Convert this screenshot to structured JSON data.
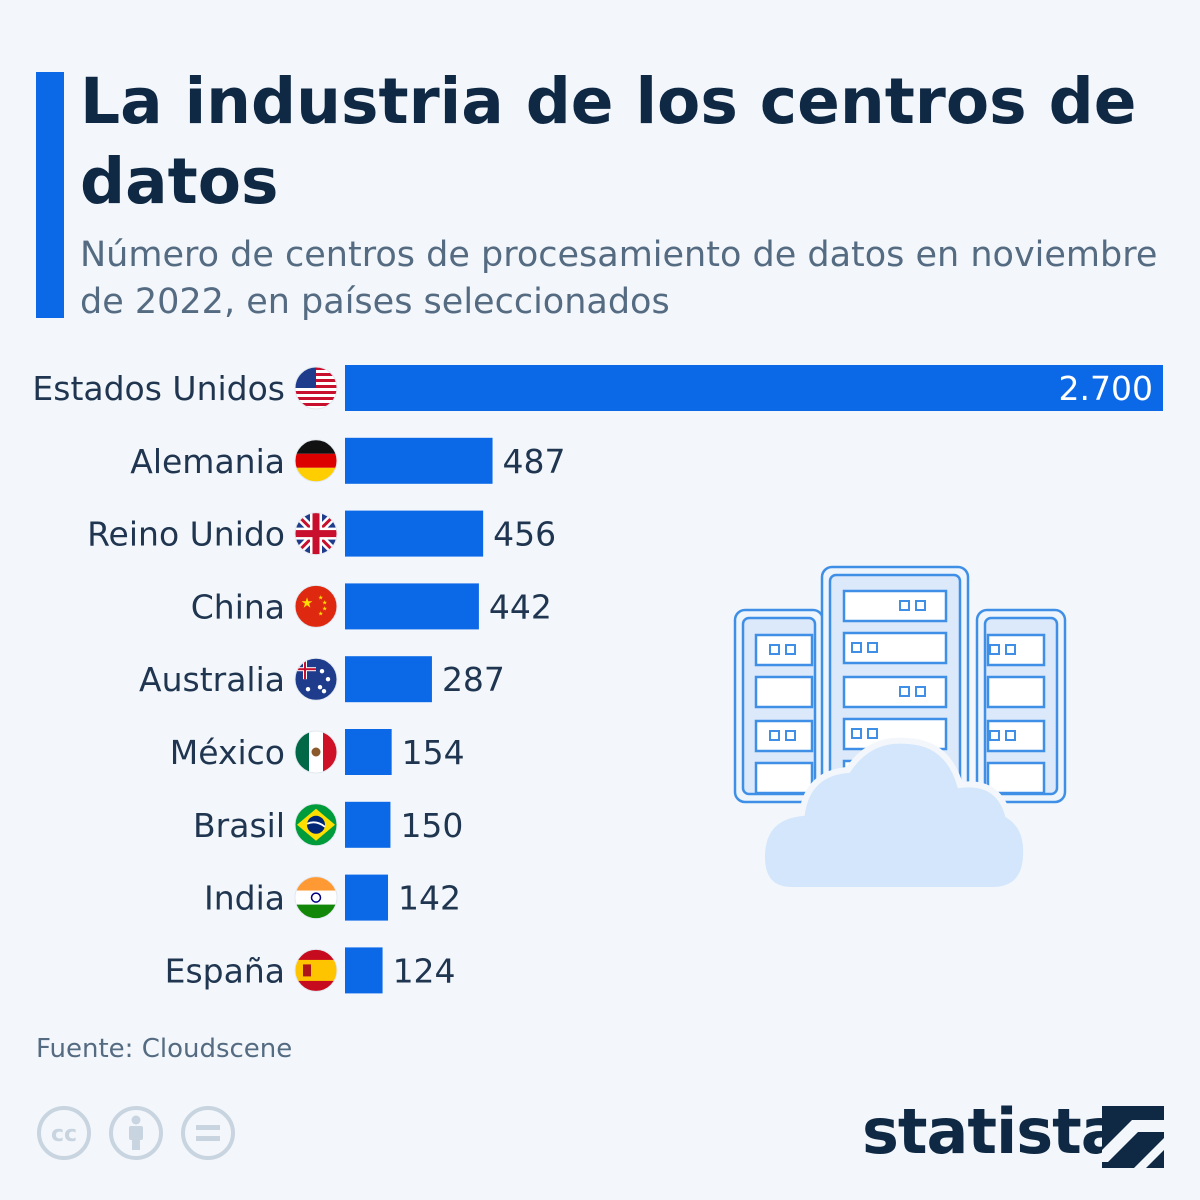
{
  "header": {
    "title": "La industria de los centros de datos",
    "subtitle": "Número de centros de procesamiento de datos en noviembre de 2022, en países seleccionados"
  },
  "colors": {
    "accent": "#0b69e8",
    "title": "#0f2844",
    "text": "#556b82",
    "background": "#f3f7fb"
  },
  "chart_data": {
    "type": "bar",
    "orientation": "horizontal",
    "categories": [
      "Estados Unidos",
      "Alemania",
      "Reino Unido",
      "China",
      "Australia",
      "México",
      "Brasil",
      "India",
      "España"
    ],
    "values": [
      2700,
      487,
      456,
      442,
      287,
      154,
      150,
      142,
      124
    ],
    "value_labels": [
      "2.700",
      "487",
      "456",
      "442",
      "287",
      "154",
      "150",
      "142",
      "124"
    ],
    "flags": [
      "us-flag-icon",
      "germany-flag-icon",
      "uk-flag-icon",
      "china-flag-icon",
      "australia-flag-icon",
      "mexico-flag-icon",
      "brazil-flag-icon",
      "india-flag-icon",
      "spain-flag-icon"
    ],
    "xlim": [
      0,
      2700
    ],
    "grid": false,
    "bar_color": "#0b69e8"
  },
  "footer": {
    "source": "Fuente: Cloudscene",
    "license_icons": [
      "cc-icon",
      "attribution-icon",
      "no-derivatives-icon"
    ],
    "brand": "statista"
  }
}
